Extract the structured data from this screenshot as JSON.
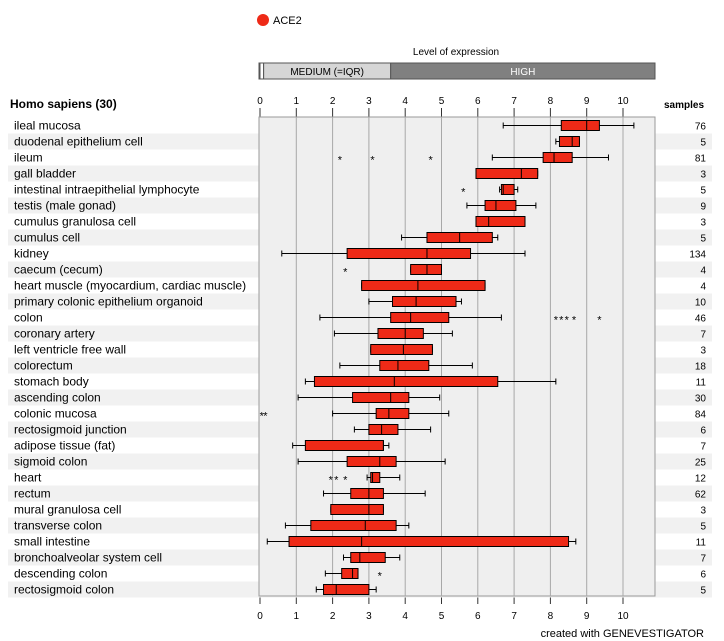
{
  "legend": {
    "label": "ACE2",
    "color": "#ee2a17"
  },
  "level_title": "Level of expression",
  "bands": [
    {
      "label": "",
      "start": 0,
      "end": 0.1
    },
    {
      "label": "MEDIUM (=IQR)",
      "start": 0.1,
      "end": 3.6
    },
    {
      "label": "HIGH",
      "start": 3.6,
      "end": 10.9
    }
  ],
  "species_header": "Homo sapiens (30)",
  "samples_header": "samples",
  "footer": "created with GENEVESTIGATOR",
  "chart_data": {
    "type": "boxplot",
    "orientation": "horizontal",
    "xlim": [
      0,
      10.9
    ],
    "xticks": [
      0,
      1,
      2,
      3,
      4,
      5,
      6,
      7,
      8,
      9,
      10
    ],
    "grid": true,
    "box_color": "#ee2a17",
    "rows": [
      {
        "label": "ileal mucosa",
        "samples": "76",
        "whisker_low": 6.7,
        "q1": 8.3,
        "median": 9.0,
        "q3": 9.35,
        "whisker_high": 10.3,
        "outliers": []
      },
      {
        "label": "duodenal epithelium cell",
        "samples": "5",
        "whisker_low": 8.15,
        "q1": 8.25,
        "median": 8.6,
        "q3": 8.8,
        "whisker_high": 8.8,
        "outliers": []
      },
      {
        "label": "ileum",
        "samples": "81",
        "whisker_low": 6.4,
        "q1": 7.8,
        "median": 8.1,
        "q3": 8.6,
        "whisker_high": 9.6,
        "outliers": [
          2.2,
          3.1,
          4.7
        ]
      },
      {
        "label": "gall bladder",
        "samples": "3",
        "whisker_low": 5.95,
        "q1": 5.95,
        "median": 7.2,
        "q3": 7.65,
        "whisker_high": 7.65,
        "outliers": []
      },
      {
        "label": "intestinal intraepithelial lymphocyte",
        "samples": "5",
        "whisker_low": 6.6,
        "q1": 6.65,
        "median": 6.7,
        "q3": 7.0,
        "whisker_high": 7.1,
        "outliers": [
          5.6
        ]
      },
      {
        "label": "testis (male gonad)",
        "samples": "9",
        "whisker_low": 5.7,
        "q1": 6.2,
        "median": 6.5,
        "q3": 7.05,
        "whisker_high": 7.6,
        "outliers": []
      },
      {
        "label": "cumulus granulosa cell",
        "samples": "3",
        "whisker_low": 5.95,
        "q1": 5.95,
        "median": 6.3,
        "q3": 7.3,
        "whisker_high": 7.3,
        "outliers": []
      },
      {
        "label": "cumulus cell",
        "samples": "5",
        "whisker_low": 3.9,
        "q1": 4.6,
        "median": 5.5,
        "q3": 6.4,
        "whisker_high": 6.55,
        "outliers": []
      },
      {
        "label": "kidney",
        "samples": "134",
        "whisker_low": 0.6,
        "q1": 2.4,
        "median": 4.6,
        "q3": 5.8,
        "whisker_high": 7.3,
        "outliers": []
      },
      {
        "label": "caecum (cecum)",
        "samples": "4",
        "whisker_low": 4.15,
        "q1": 4.15,
        "median": 4.6,
        "q3": 5.0,
        "whisker_high": 5.0,
        "outliers": [
          2.35
        ]
      },
      {
        "label": "heart muscle (myocardium, cardiac muscle)",
        "samples": "4",
        "whisker_low": 2.8,
        "q1": 2.8,
        "median": 4.35,
        "q3": 6.2,
        "whisker_high": 6.2,
        "outliers": []
      },
      {
        "label": "primary colonic epithelium organoid",
        "samples": "10",
        "whisker_low": 3.0,
        "q1": 3.65,
        "median": 4.3,
        "q3": 5.4,
        "whisker_high": 5.55,
        "outliers": []
      },
      {
        "label": "colon",
        "samples": "46",
        "whisker_low": 1.65,
        "q1": 3.6,
        "median": 4.15,
        "q3": 5.2,
        "whisker_high": 6.65,
        "outliers": [
          8.15,
          8.3,
          8.45,
          8.65,
          9.35
        ]
      },
      {
        "label": "coronary artery",
        "samples": "7",
        "whisker_low": 2.05,
        "q1": 3.25,
        "median": 4.0,
        "q3": 4.5,
        "whisker_high": 5.3,
        "outliers": []
      },
      {
        "label": "left ventricle free wall",
        "samples": "3",
        "whisker_low": 3.05,
        "q1": 3.05,
        "median": 3.95,
        "q3": 4.75,
        "whisker_high": 4.75,
        "outliers": []
      },
      {
        "label": "colorectum",
        "samples": "18",
        "whisker_low": 2.2,
        "q1": 3.3,
        "median": 3.8,
        "q3": 4.65,
        "whisker_high": 5.85,
        "outliers": []
      },
      {
        "label": "stomach body",
        "samples": "11",
        "whisker_low": 1.25,
        "q1": 1.5,
        "median": 3.7,
        "q3": 6.55,
        "whisker_high": 8.15,
        "outliers": []
      },
      {
        "label": "ascending colon",
        "samples": "30",
        "whisker_low": 1.05,
        "q1": 2.55,
        "median": 3.6,
        "q3": 4.1,
        "whisker_high": 4.95,
        "outliers": []
      },
      {
        "label": "colonic mucosa",
        "samples": "84",
        "whisker_low": 2.0,
        "q1": 3.2,
        "median": 3.55,
        "q3": 4.1,
        "whisker_high": 5.2,
        "outliers": [
          0.05,
          0.15
        ]
      },
      {
        "label": "rectosigmoid junction",
        "samples": "6",
        "whisker_low": 2.6,
        "q1": 3.0,
        "median": 3.35,
        "q3": 3.8,
        "whisker_high": 4.7,
        "outliers": []
      },
      {
        "label": "adipose tissue (fat)",
        "samples": "7",
        "whisker_low": 0.9,
        "q1": 1.25,
        "median": 3.4,
        "q3": 3.4,
        "whisker_high": 3.55,
        "outliers": []
      },
      {
        "label": "sigmoid colon",
        "samples": "25",
        "whisker_low": 1.05,
        "q1": 2.4,
        "median": 3.3,
        "q3": 3.75,
        "whisker_high": 5.1,
        "outliers": []
      },
      {
        "label": "heart",
        "samples": "12",
        "whisker_low": 2.95,
        "q1": 3.05,
        "median": 3.1,
        "q3": 3.3,
        "whisker_high": 3.85,
        "outliers": [
          1.95,
          2.1,
          2.35
        ]
      },
      {
        "label": "rectum",
        "samples": "62",
        "whisker_low": 1.75,
        "q1": 2.5,
        "median": 3.0,
        "q3": 3.4,
        "whisker_high": 4.55,
        "outliers": []
      },
      {
        "label": "mural granulosa cell",
        "samples": "3",
        "whisker_low": 1.95,
        "q1": 1.95,
        "median": 3.0,
        "q3": 3.4,
        "whisker_high": 3.4,
        "outliers": []
      },
      {
        "label": "transverse colon",
        "samples": "5",
        "whisker_low": 0.7,
        "q1": 1.4,
        "median": 2.9,
        "q3": 3.75,
        "whisker_high": 4.1,
        "outliers": []
      },
      {
        "label": "small intestine",
        "samples": "11",
        "whisker_low": 0.2,
        "q1": 0.8,
        "median": 2.8,
        "q3": 8.5,
        "whisker_high": 8.7,
        "outliers": []
      },
      {
        "label": "bronchoalveolar system cell",
        "samples": "7",
        "whisker_low": 2.3,
        "q1": 2.5,
        "median": 2.75,
        "q3": 3.45,
        "whisker_high": 3.85,
        "outliers": []
      },
      {
        "label": "descending colon",
        "samples": "6",
        "whisker_low": 1.8,
        "q1": 2.25,
        "median": 2.55,
        "q3": 2.7,
        "whisker_high": 2.7,
        "outliers": [
          3.3
        ]
      },
      {
        "label": "rectosigmoid colon",
        "samples": "5",
        "whisker_low": 1.55,
        "q1": 1.75,
        "median": 2.1,
        "q3": 3.0,
        "whisker_high": 3.2,
        "outliers": []
      }
    ]
  }
}
